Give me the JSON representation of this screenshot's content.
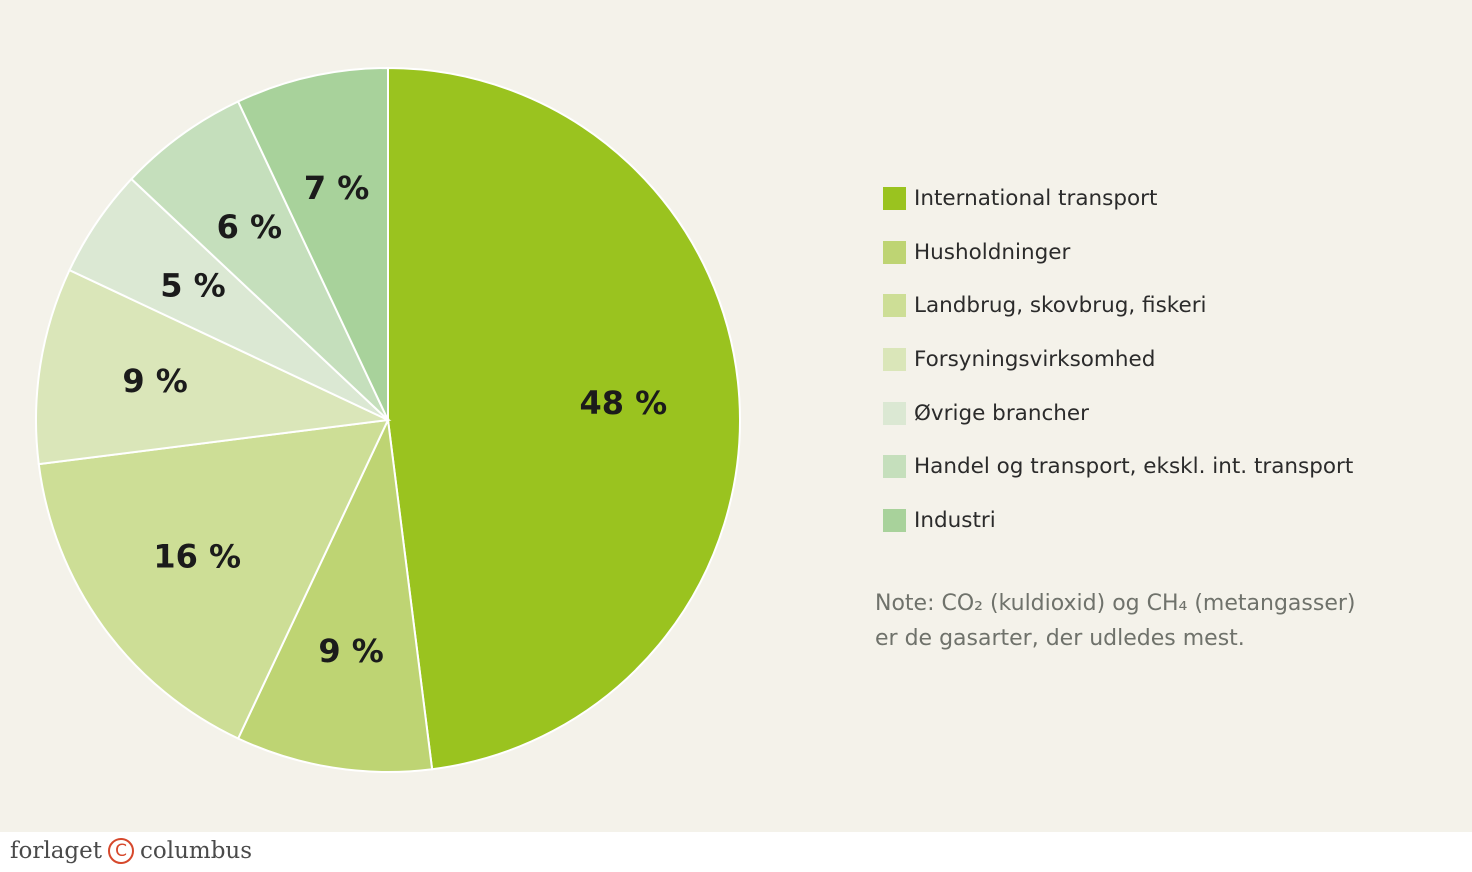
{
  "chart_data": {
    "type": "pie",
    "categories": [
      "International transport",
      "Husholdninger",
      "Landbrug, skovbrug, fiskeri",
      "Forsyningsvirksomhed",
      "Øvrige brancher",
      "Handel og transport, ekskl. int. transport",
      "Industri"
    ],
    "values": [
      48,
      9,
      16,
      9,
      5,
      6,
      7
    ],
    "labels": [
      "48 %",
      "9 %",
      "16 %",
      "9 %",
      "5 %",
      "6 %",
      "7 %"
    ],
    "colors": [
      "#9ac31f",
      "#bed473",
      "#cdde96",
      "#dae6b9",
      "#dbe8d3",
      "#c5dfbc",
      "#a8d29b"
    ],
    "start": "12 o'clock",
    "direction": "clockwise",
    "legend_position": "right"
  },
  "legend": {
    "items": [
      {
        "label": "International transport",
        "color": "#9ac31f"
      },
      {
        "label": "Husholdninger",
        "color": "#bed473"
      },
      {
        "label": "Landbrug, skovbrug, fiskeri",
        "color": "#cdde96"
      },
      {
        "label": "Forsyningsvirksomhed",
        "color": "#dae6b9"
      },
      {
        "label": "Øvrige brancher",
        "color": "#dbe8d3"
      },
      {
        "label": "Handel og transport, ekskl. int. transport",
        "color": "#c5dfbc"
      },
      {
        "label": "Industri",
        "color": "#a8d29b"
      }
    ]
  },
  "note": {
    "line1": "Note: CO₂ (kuldioxid) og CH₄ (metangasser)",
    "line2": "er de gasarter, der udledes mest."
  },
  "footer": {
    "brand_left": "forlaget",
    "brand_mark": "C",
    "brand_right": "columbus"
  }
}
